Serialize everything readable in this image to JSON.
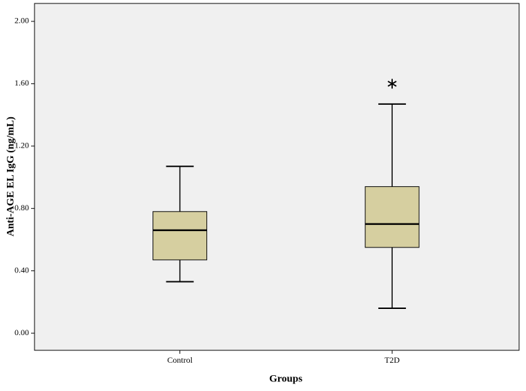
{
  "chart_data": {
    "type": "box",
    "y_label": "Anti-AGE EL IgG (ng/mL)",
    "x_label": "Groups",
    "categories": [
      "Control",
      "T2D"
    ],
    "boxes": [
      {
        "min": 0.33,
        "q1": 0.47,
        "median": 0.66,
        "q3": 0.78,
        "max": 1.07,
        "outliers": []
      },
      {
        "min": 0.16,
        "q1": 0.55,
        "median": 0.7,
        "q3": 0.94,
        "max": 1.47,
        "outliers": [
          1.6
        ]
      }
    ],
    "color": "#d6cfa0",
    "ylim": [
      -0.11,
      2.115
    ],
    "yticks": [
      {
        "value": 0,
        "label": "0.00"
      },
      {
        "value": 0.4,
        "label": "0.40"
      },
      {
        "value": 0.8,
        "label": "0.80"
      },
      {
        "value": 1.2,
        "label": "1.20"
      },
      {
        "value": 1.6,
        "label": "1.60"
      },
      {
        "value": 2,
        "label": "2.00"
      }
    ]
  }
}
